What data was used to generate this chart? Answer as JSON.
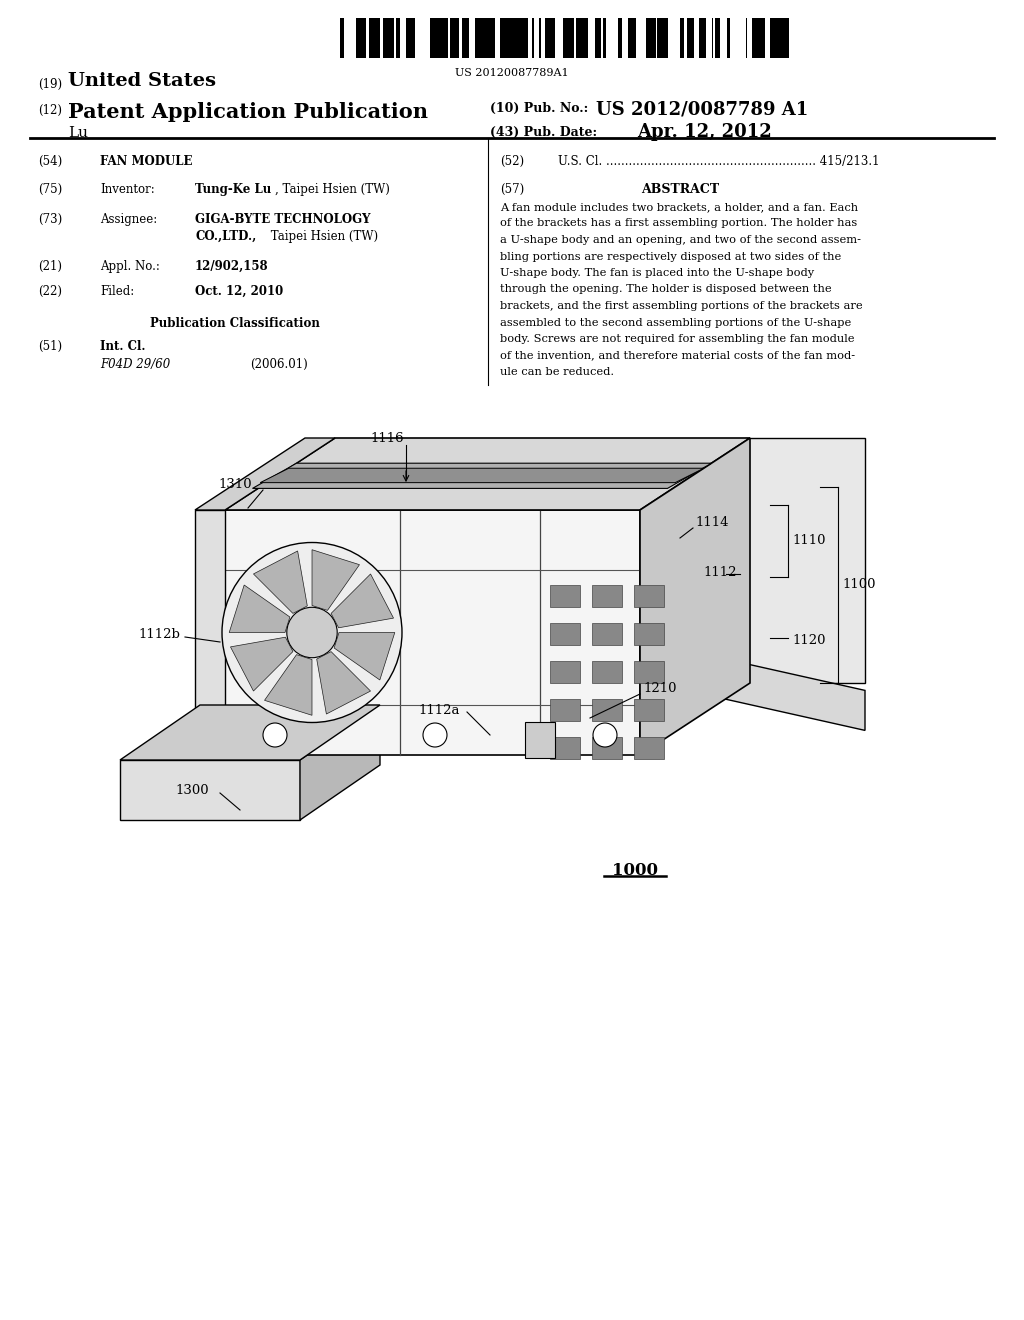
{
  "bg_color": "#ffffff",
  "barcode_text": "US 20120087789A1",
  "abstract_lines": [
    "A fan module includes two brackets, a holder, and a fan. Each",
    "of the brackets has a first assembling portion. The holder has",
    "a U-shape body and an opening, and two of the second assem-",
    "bling portions are respectively disposed at two sides of the",
    "U-shape body. The fan is placed into the U-shape body",
    "through the opening. The holder is disposed between the",
    "brackets, and the first assembling portions of the brackets are",
    "assembled to the second assembling portions of the U-shape",
    "body. Screws are not required for assembling the fan module",
    "of the invention, and therefore material costs of the fan mod-",
    "ule can be reduced."
  ]
}
